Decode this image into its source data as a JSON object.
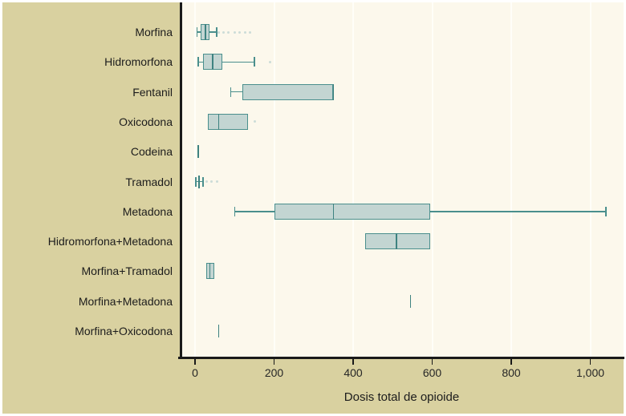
{
  "figure": {
    "colors": {
      "margin": "#ffffff",
      "canvas": "#d9d1a0",
      "plot_bg": "#fcf8ec",
      "axis": "#1a1a1a",
      "gridline": "#fffef8",
      "box_fill": "#c3d5d2",
      "box_stroke": "#4a8f8d",
      "median": "#3e8280",
      "outlier": "#ccdcd8",
      "text": "#1c1c1c"
    }
  },
  "chart_data": {
    "type": "boxplot",
    "orientation": "horizontal",
    "title": "",
    "xlabel": "Dosis total de opioide",
    "xlim": [
      0,
      1085
    ],
    "grid": "vertical",
    "legend": "none",
    "x_ticks": [
      {
        "value": 0,
        "label": "0"
      },
      {
        "value": 200,
        "label": "200"
      },
      {
        "value": 400,
        "label": "400"
      },
      {
        "value": 600,
        "label": "600"
      },
      {
        "value": 800,
        "label": "800"
      },
      {
        "value": 1000,
        "label": "1,000"
      }
    ],
    "categories": [
      "Morfina",
      "Hidromorfona",
      "Fentanil",
      "Oxicodona",
      "Codeina",
      "Tramadol",
      "Metadona",
      "Hidromorfona+Metadona",
      "Morfina+Tramadol",
      "Morfina+Metadona",
      "Morfina+Oxicodona"
    ],
    "series": [
      {
        "name": "Morfina",
        "low": 5,
        "q1": 14,
        "median": 26,
        "q3": 36,
        "high": 55,
        "outliers": [
          60,
          72,
          85,
          100,
          113,
          127,
          140
        ]
      },
      {
        "name": "Hidromorfona",
        "low": 8,
        "q1": 20,
        "median": 45,
        "q3": 70,
        "high": 150,
        "outliers": [
          190
        ]
      },
      {
        "name": "Fentanil",
        "low": 90,
        "q1": 120,
        "median": 350,
        "q3": 350,
        "high": 350,
        "outliers": []
      },
      {
        "name": "Oxicodona",
        "low": 32,
        "q1": 32,
        "median": 60,
        "q3": 135,
        "high": 135,
        "outliers": [
          152
        ]
      },
      {
        "name": "Codeina",
        "low": 8,
        "q1": 8,
        "median": 8,
        "q3": 8,
        "high": 8,
        "outliers": []
      },
      {
        "name": "Tramadol",
        "low": 2,
        "q1": 10,
        "median": 10,
        "q3": 10,
        "high": 20,
        "outliers": [
          30,
          42,
          55
        ]
      },
      {
        "name": "Metadona",
        "low": 100,
        "q1": 200,
        "median": 350,
        "q3": 595,
        "high": 1040,
        "outliers": []
      },
      {
        "name": "Hidromorfona+Metadona",
        "low": 430,
        "q1": 430,
        "median": 510,
        "q3": 595,
        "high": 595,
        "outliers": []
      },
      {
        "name": "Morfina+Tramadol",
        "low": 28,
        "q1": 28,
        "median": 38,
        "q3": 48,
        "high": 48,
        "outliers": []
      },
      {
        "name": "Morfina+Metadona",
        "low": 545,
        "q1": 545,
        "median": 545,
        "q3": 545,
        "high": 545,
        "outliers": []
      },
      {
        "name": "Morfina+Oxicodona",
        "low": 60,
        "q1": 60,
        "median": 60,
        "q3": 60,
        "high": 60,
        "outliers": []
      }
    ]
  }
}
